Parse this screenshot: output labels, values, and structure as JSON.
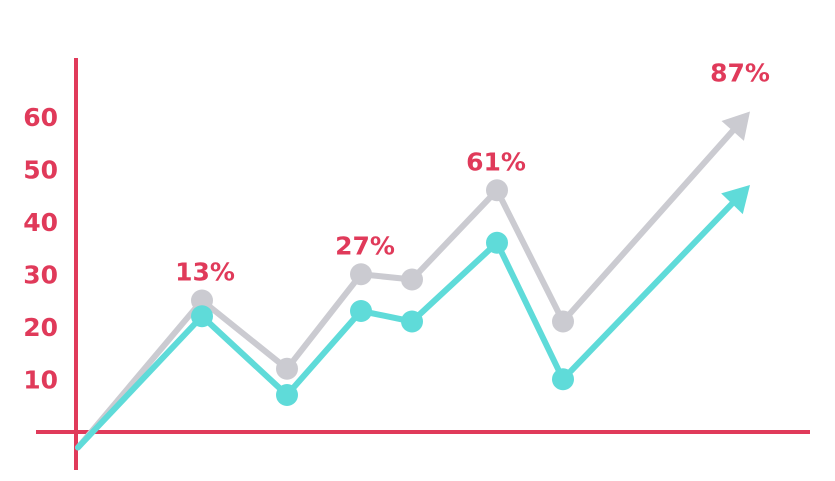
{
  "chart_data": {
    "type": "line",
    "title": "",
    "xlabel": "",
    "ylabel": "",
    "ylim": [
      0,
      70
    ],
    "y_ticks": [
      "10",
      "20",
      "30",
      "40",
      "50",
      "60"
    ],
    "grid": false,
    "legend": "none",
    "x": [
      0,
      1,
      2,
      3,
      4,
      5,
      6,
      7
    ],
    "series": [
      {
        "color": "#cbcbd1",
        "values": [
          2,
          30,
          17,
          35,
          34,
          51,
          26,
          66
        ]
      },
      {
        "color": "#5fdbd9",
        "values": [
          2,
          27,
          12,
          28,
          26,
          41,
          15,
          52
        ]
      }
    ],
    "annotations": [
      {
        "text": "13%",
        "x": 1,
        "y": 30
      },
      {
        "text": "27%",
        "x": 3,
        "y": 35
      },
      {
        "text": "61%",
        "x": 5,
        "y": 51
      },
      {
        "text": "87%",
        "x": 7,
        "y": 66
      }
    ],
    "colors": {
      "axis": "#e03a5a",
      "label": "#e03a5a"
    }
  }
}
